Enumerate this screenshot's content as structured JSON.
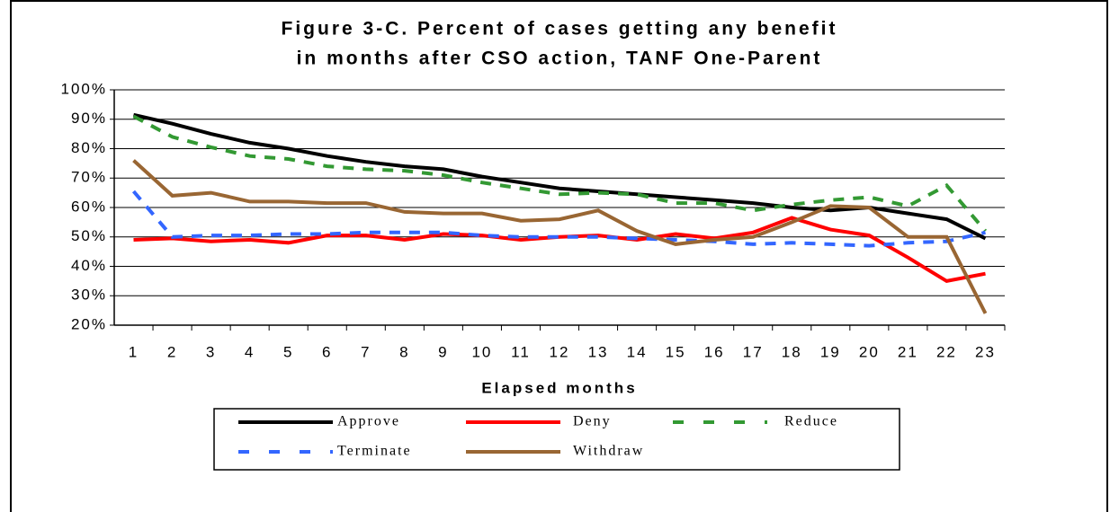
{
  "chart_data": {
    "type": "line",
    "title": [
      "Figure 3-C. Percent of cases getting any benefit",
      "in months after CSO action, TANF One-Parent"
    ],
    "x_label": "Elapsed months",
    "categories": [
      "1",
      "2",
      "3",
      "4",
      "5",
      "6",
      "7",
      "8",
      "9",
      "10",
      "11",
      "12",
      "13",
      "14",
      "15",
      "16",
      "17",
      "18",
      "19",
      "20",
      "21",
      "22",
      "23"
    ],
    "ylim": [
      20,
      100
    ],
    "yticks": [
      {
        "value": 20,
        "label": "20%"
      },
      {
        "value": 30,
        "label": "30%"
      },
      {
        "value": 40,
        "label": "40%"
      },
      {
        "value": 50,
        "label": "50%"
      },
      {
        "value": 60,
        "label": "60%"
      },
      {
        "value": 70,
        "label": "70%"
      },
      {
        "value": 80,
        "label": "80%"
      },
      {
        "value": 90,
        "label": "90%"
      },
      {
        "value": 100,
        "label": "100%"
      }
    ],
    "grid": true,
    "legend": "bottom",
    "series": [
      {
        "name": "Approve",
        "color": "#000000",
        "values": [
          91.5,
          88.5,
          85,
          82,
          80,
          77.5,
          75.5,
          74,
          73,
          70.5,
          68.5,
          66.5,
          65.5,
          64.5,
          63.5,
          62.5,
          61.5,
          60,
          59,
          60,
          58,
          56,
          49.5
        ]
      },
      {
        "name": "Deny",
        "color": "#ff0000",
        "values": [
          49,
          49.5,
          48.5,
          49,
          48,
          50.5,
          50.5,
          49,
          51,
          50.5,
          49,
          50,
          50.5,
          49,
          51,
          49.5,
          51.5,
          56.5,
          52.5,
          50.5,
          43,
          35,
          37.5
        ]
      },
      {
        "name": "Reduce",
        "color": "#339933",
        "dashed": true,
        "values": [
          91,
          84,
          80.5,
          77.5,
          76.5,
          74,
          73,
          72.5,
          71,
          68.5,
          66.5,
          64.5,
          65,
          64.5,
          61.5,
          61.5,
          59,
          61,
          62.5,
          63.5,
          60.5,
          67.5,
          52
        ]
      },
      {
        "name": "Terminate",
        "color": "#3366ff",
        "dashed": true,
        "values": [
          65.5,
          50,
          50.5,
          50.5,
          51,
          51,
          51.5,
          51.5,
          51.5,
          50.5,
          50,
          50,
          50,
          49.5,
          49,
          48.5,
          47.5,
          48,
          47.5,
          47,
          48,
          48.5,
          51.5
        ]
      },
      {
        "name": "Withdraw",
        "color": "#996633",
        "values": [
          76,
          64,
          65,
          62,
          62,
          61.5,
          61.5,
          58.5,
          58,
          58,
          55.5,
          56,
          59,
          52,
          47.5,
          49,
          50,
          55,
          60.5,
          60,
          50,
          50,
          24
        ]
      }
    ]
  }
}
